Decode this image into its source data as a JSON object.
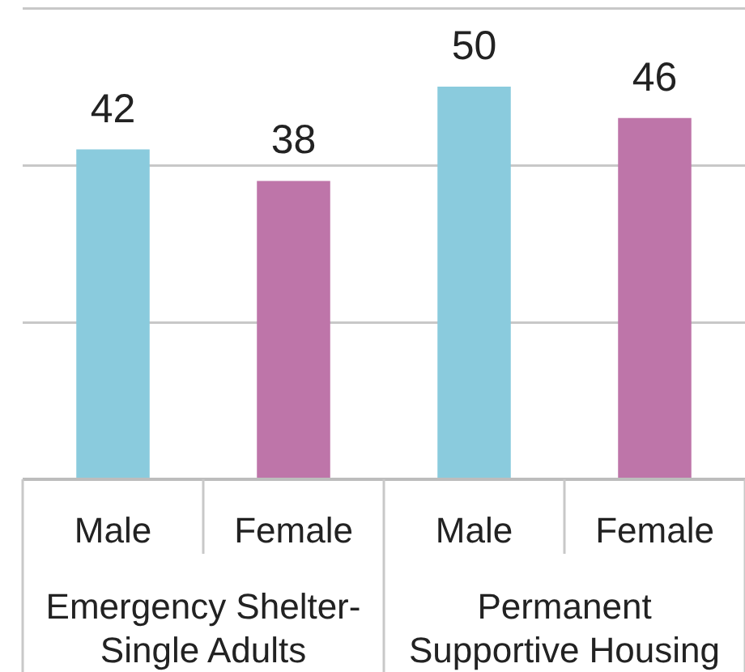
{
  "chart_data": {
    "type": "bar",
    "categories": [
      "Emergency Shelter-Single Adults",
      "Permanent Supportive Housing"
    ],
    "series": [
      {
        "name": "Male",
        "color": "#8acbdd",
        "values": [
          42,
          50
        ]
      },
      {
        "name": "Female",
        "color": "#be75a9",
        "values": [
          38,
          46
        ]
      }
    ],
    "ylim": [
      0,
      60
    ],
    "yticks": [
      {
        "value": 0,
        "label": null
      },
      {
        "value": 20,
        "label": null
      },
      {
        "value": 40,
        "label": null
      },
      {
        "value": 60,
        "label": null
      }
    ],
    "grid": "y",
    "tick_labels": "x",
    "data_labels": true
  }
}
